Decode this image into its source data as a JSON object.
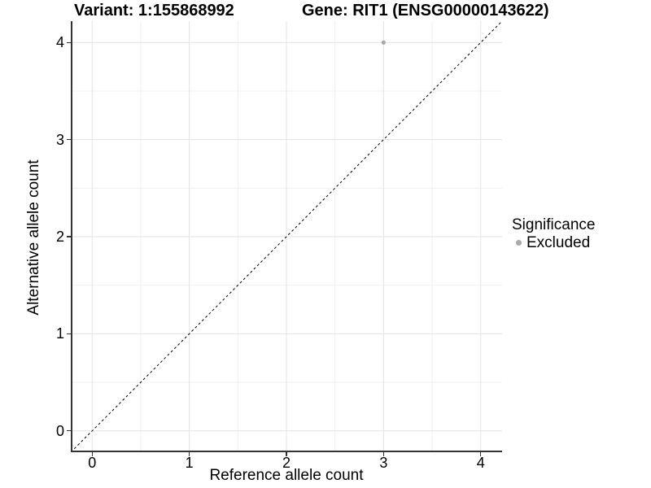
{
  "chart_data": {
    "type": "scatter",
    "titles": [
      "Variant: 1:155868992",
      "Gene: RIT1 (ENSG00000143622)"
    ],
    "xlabel": "Reference allele count",
    "ylabel": "Alternative allele count",
    "xlim": [
      -0.22,
      4.22
    ],
    "ylim": [
      -0.22,
      4.22
    ],
    "xticks": [
      0,
      1,
      2,
      3,
      4
    ],
    "yticks": [
      0,
      1,
      2,
      3,
      4
    ],
    "xminor_ticks": [
      0.5,
      1.5,
      2.5,
      3.5
    ],
    "yminor_ticks": [
      0.5,
      1.5,
      2.5,
      3.5
    ],
    "grid": true,
    "legend_position": "right",
    "series": [
      {
        "name": "Excluded",
        "color": "#a9a9a9",
        "points": [
          {
            "x": 3,
            "y": 4
          }
        ]
      }
    ],
    "reference_line": {
      "slope": 1,
      "intercept": 0,
      "style": "dashed",
      "color": "#000000"
    },
    "legend": {
      "title": "Significance",
      "items": [
        {
          "label": "Excluded",
          "color": "#a9a9a9"
        }
      ]
    }
  },
  "colors": {
    "background": "#ffffff",
    "text": "#000000",
    "axis": "#333333",
    "grid_major": "#e3e3e3",
    "grid_minor": "#f0f0f0"
  }
}
